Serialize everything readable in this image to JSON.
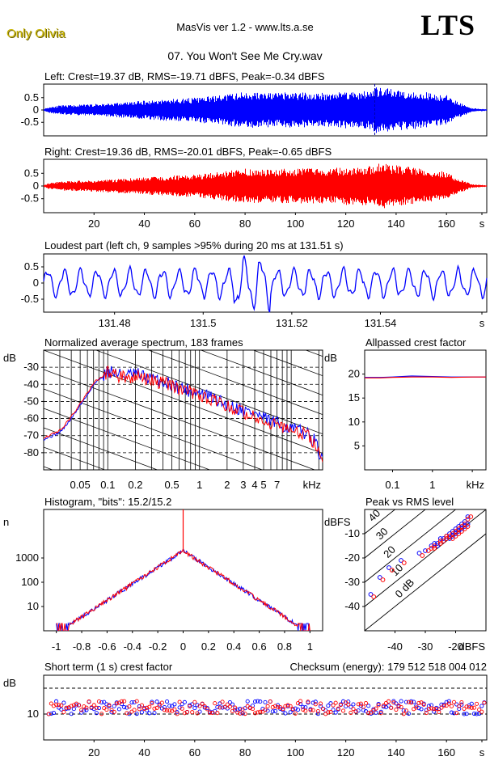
{
  "header": {
    "brand": "Only Olivia",
    "app_title": "MasVis ver 1.2 - www.lts.a.se",
    "logo": "LTS",
    "track_title": "07. You Won't See Me Cry.wav"
  },
  "colors": {
    "left": "#0000ff",
    "right": "#ff0000"
  },
  "chart_data": [
    {
      "id": "left_waveform",
      "type": "line",
      "title": "Left: Crest=19.37 dB, RMS=-19.71 dBFS, Peak=-0.34 dBFS",
      "x_range": [
        0,
        176
      ],
      "ylim": [
        -1,
        1
      ],
      "yticks": [
        "0.5",
        "0",
        "-0.5"
      ],
      "marker_x": 131.51,
      "envelope_t": [
        0,
        2,
        4,
        6,
        10,
        20,
        30,
        40,
        50,
        60,
        70,
        80,
        90,
        100,
        110,
        120,
        125,
        130,
        131.5,
        133,
        140,
        150,
        160,
        165,
        170,
        176
      ],
      "envelope_a": [
        0.05,
        0.12,
        0.16,
        0.18,
        0.2,
        0.24,
        0.3,
        0.38,
        0.45,
        0.5,
        0.6,
        0.75,
        0.7,
        0.72,
        0.7,
        0.78,
        0.75,
        0.8,
        0.95,
        0.9,
        0.85,
        0.75,
        0.6,
        0.3,
        0.08,
        0.03
      ]
    },
    {
      "id": "right_waveform",
      "type": "line",
      "title": "Right: Crest=19.36 dB, RMS=-20.01 dBFS, Peak=-0.65 dBFS",
      "x_range": [
        0,
        176
      ],
      "ylim": [
        -1,
        1
      ],
      "yticks": [
        "0.5",
        "0",
        "-0.5"
      ],
      "xticks": [
        "20",
        "40",
        "60",
        "80",
        "100",
        "120",
        "140",
        "160",
        "s"
      ],
      "envelope_t": [
        0,
        2,
        4,
        6,
        10,
        20,
        30,
        40,
        50,
        60,
        70,
        80,
        90,
        100,
        110,
        120,
        125,
        130,
        131.5,
        133,
        140,
        150,
        160,
        165,
        170,
        176
      ],
      "envelope_a": [
        0.05,
        0.12,
        0.15,
        0.17,
        0.2,
        0.22,
        0.28,
        0.34,
        0.4,
        0.45,
        0.55,
        0.7,
        0.65,
        0.7,
        0.7,
        0.75,
        0.75,
        0.78,
        0.85,
        0.9,
        0.82,
        0.7,
        0.55,
        0.28,
        0.07,
        0.03
      ]
    },
    {
      "id": "loudest_part",
      "type": "line",
      "title": "Loudest part (left  ch, 9 samples >95% during 20 ms at 131.51 s)",
      "x_range": [
        131.464,
        131.564
      ],
      "ylim": [
        -0.9,
        0.9
      ],
      "yticks": [
        "0.5",
        "0",
        "-0.5"
      ],
      "xticks": [
        "131.48",
        "131.5",
        "131.52",
        "131.54",
        "s"
      ],
      "x_tick_values": [
        131.48,
        131.5,
        131.52,
        131.54
      ]
    },
    {
      "id": "spectrum",
      "type": "line",
      "title": "Normalized average spectrum, 183 frames",
      "ylabel": "dB",
      "xunit": "kHz",
      "xlim_khz": [
        0.02,
        22
      ],
      "ylim_db": [
        -90,
        -20
      ],
      "yticks": [
        "-30",
        "-40",
        "-50",
        "-60",
        "-70",
        "-80"
      ],
      "xticks": [
        "0.05",
        "0.1",
        "0.2",
        "0.5",
        "1",
        "2",
        "3",
        "4",
        "5",
        "7"
      ],
      "x_tick_values": [
        0.05,
        0.1,
        0.2,
        0.5,
        1,
        2,
        3,
        4,
        5,
        7
      ],
      "series": [
        {
          "color": "blue",
          "x_khz": [
            0.02,
            0.03,
            0.05,
            0.07,
            0.1,
            0.15,
            0.2,
            0.3,
            0.5,
            0.7,
            1,
            1.5,
            2,
            3,
            4,
            5,
            7,
            10,
            14,
            18,
            22
          ],
          "db": [
            -72,
            -68,
            -52,
            -40,
            -32,
            -35,
            -34,
            -37,
            -40,
            -43,
            -45,
            -49,
            -52,
            -55,
            -57,
            -60,
            -63,
            -66,
            -68,
            -73,
            -86
          ]
        },
        {
          "color": "red",
          "x_khz": [
            0.02,
            0.03,
            0.05,
            0.07,
            0.1,
            0.15,
            0.2,
            0.3,
            0.5,
            0.7,
            1,
            1.5,
            2,
            3,
            4,
            5,
            7,
            10,
            14,
            18,
            22
          ],
          "db": [
            -71,
            -67,
            -51,
            -39,
            -33,
            -36,
            -35,
            -38,
            -41,
            -44,
            -46,
            -50,
            -53,
            -56,
            -58,
            -61,
            -64,
            -67,
            -69,
            -74,
            -87
          ]
        }
      ]
    },
    {
      "id": "allpassed_crest",
      "type": "line",
      "title": "Allpassed crest factor",
      "ylabel": "dB",
      "xunit": "kHz",
      "ylim_db": [
        0,
        25
      ],
      "yticks": [
        "20",
        "15",
        "10",
        "5"
      ],
      "xticks": [
        "0.1",
        "1",
        "10"
      ],
      "x_tick_values": [
        0.1,
        1,
        10
      ],
      "series": [
        {
          "color": "blue",
          "x_khz": [
            0.02,
            0.05,
            0.1,
            0.3,
            1,
            3,
            10,
            22
          ],
          "db": [
            19.3,
            19.3,
            19.4,
            19.6,
            19.5,
            19.4,
            19.4,
            19.4
          ]
        },
        {
          "color": "red",
          "x_khz": [
            0.02,
            0.05,
            0.1,
            0.3,
            1,
            3,
            10,
            22
          ],
          "db": [
            19.2,
            19.2,
            19.3,
            19.4,
            19.4,
            19.3,
            19.4,
            19.4
          ]
        }
      ]
    },
    {
      "id": "histogram",
      "type": "line",
      "title": "Histogram, \"bits\": 15.2/15.2",
      "ylabel": "n",
      "ylim_log": [
        1,
        100000
      ],
      "yticks": [
        "1000",
        "100",
        "10"
      ],
      "y_tick_values": [
        1000,
        100,
        10
      ],
      "xticks": [
        "-1",
        "-0.8",
        "-0.6",
        "-0.4",
        "-0.2",
        "0",
        "0.2",
        "0.4",
        "0.6",
        "0.8",
        "1"
      ],
      "x_tick_values": [
        -1,
        -0.8,
        -0.6,
        -0.4,
        -0.2,
        0,
        0.2,
        0.4,
        0.6,
        0.8,
        1
      ],
      "xlim": [
        -1.1,
        1.1
      ],
      "peak_count": 2000,
      "decay_per_unit": 10
    },
    {
      "id": "peak_vs_rms",
      "type": "scatter",
      "title": "Peak vs RMS level",
      "ylabel": "dBFS",
      "xlabel": "dBFS",
      "xlim": [
        -50,
        -10
      ],
      "ylim": [
        -50,
        0
      ],
      "yticks": [
        "-10",
        "-20",
        "-30",
        "-40"
      ],
      "y_tick_values": [
        -10,
        -20,
        -30,
        -40
      ],
      "xticks": [
        "-40",
        "-30",
        "-20"
      ],
      "x_tick_values": [
        -40,
        -30,
        -20
      ],
      "crest_lines": [
        "40",
        "30",
        "20",
        "10",
        "0 dB"
      ],
      "crest_line_values": [
        40,
        30,
        20,
        10,
        0
      ],
      "series": [
        {
          "color": "blue",
          "points": [
            [
              -48,
              -35
            ],
            [
              -45,
              -28
            ],
            [
              -42,
              -24
            ],
            [
              -38,
              -21
            ],
            [
              -32,
              -18
            ],
            [
              -30,
              -17
            ],
            [
              -28,
              -15
            ],
            [
              -27,
              -14
            ],
            [
              -26,
              -14
            ],
            [
              -25,
              -12
            ],
            [
              -24,
              -12
            ],
            [
              -23,
              -11
            ],
            [
              -22,
              -10
            ],
            [
              -21,
              -9
            ],
            [
              -20,
              -8
            ],
            [
              -19,
              -7
            ],
            [
              -18,
              -6
            ],
            [
              -17,
              -5
            ],
            [
              -16,
              -3
            ],
            [
              -22,
              -12
            ],
            [
              -20,
              -10
            ],
            [
              -19,
              -9
            ],
            [
              -18,
              -8
            ],
            [
              -24,
              -13
            ],
            [
              -26,
              -15
            ],
            [
              -21,
              -11
            ],
            [
              -17,
              -7
            ],
            [
              -16,
              -6
            ]
          ]
        },
        {
          "color": "red",
          "points": [
            [
              -47,
              -36
            ],
            [
              -44,
              -29
            ],
            [
              -41,
              -25
            ],
            [
              -37,
              -22
            ],
            [
              -31,
              -19
            ],
            [
              -29,
              -17
            ],
            [
              -28,
              -16
            ],
            [
              -27,
              -15
            ],
            [
              -25,
              -13
            ],
            [
              -24,
              -13
            ],
            [
              -23,
              -12
            ],
            [
              -22,
              -11
            ],
            [
              -21,
              -10
            ],
            [
              -20,
              -9
            ],
            [
              -19,
              -8
            ],
            [
              -18,
              -7
            ],
            [
              -17,
              -6
            ],
            [
              -16,
              -4
            ],
            [
              -15,
              -3
            ],
            [
              -23,
              -11
            ],
            [
              -21,
              -12
            ],
            [
              -20,
              -11
            ],
            [
              -19,
              -10
            ],
            [
              -25,
              -14
            ],
            [
              -27,
              -16
            ],
            [
              -18,
              -9
            ],
            [
              -17,
              -8
            ],
            [
              -16,
              -7
            ]
          ]
        }
      ]
    },
    {
      "id": "short_term_crest",
      "type": "scatter",
      "title": "Short term (1 s) crest factor",
      "checksum": "Checksum (energy):   179 512 518 004 012",
      "ylabel": "dB",
      "x_range": [
        0,
        176
      ],
      "ylim": [
        0,
        25
      ],
      "yticks": [
        "10"
      ],
      "y_tick_values": [
        10
      ],
      "dashed_at": [
        10,
        20
      ],
      "xticks": [
        "20",
        "40",
        "60",
        "80",
        "100",
        "120",
        "140",
        "160",
        "s"
      ],
      "mean_db": 12.5
    }
  ]
}
